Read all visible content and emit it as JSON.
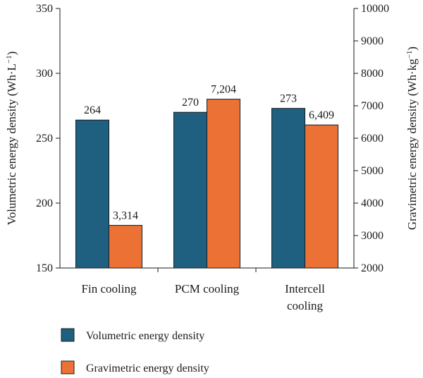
{
  "chart_data": {
    "type": "bar",
    "categories": [
      [
        "Fin cooling"
      ],
      [
        "PCM cooling"
      ],
      [
        "Intercell",
        "cooling"
      ]
    ],
    "series": [
      {
        "name": "Volumetric energy density",
        "axis": "left",
        "color": "#1f5f80",
        "values": [
          264,
          270,
          273
        ],
        "labels": [
          "264",
          "270",
          "273"
        ]
      },
      {
        "name": "Gravimetric energy density",
        "axis": "right",
        "color": "#eb7234",
        "values": [
          3314,
          7204,
          6409
        ],
        "labels": [
          "3,314",
          "7,204",
          "6,409"
        ]
      }
    ],
    "y_left": {
      "label": "Volumetric energy density (Wh·L",
      "label_sup": "−1",
      "label_end": ")",
      "range": [
        150,
        350
      ],
      "ticks": [
        150,
        200,
        250,
        300,
        350
      ]
    },
    "y_right": {
      "label": "Gravimetric energy density (Wh·kg",
      "label_sup": "−1",
      "label_end": ")",
      "range": [
        2000,
        10000
      ],
      "ticks": [
        2000,
        3000,
        4000,
        5000,
        6000,
        7000,
        8000,
        9000,
        10000
      ]
    },
    "grid": false,
    "legend_position": "bottom-left"
  }
}
